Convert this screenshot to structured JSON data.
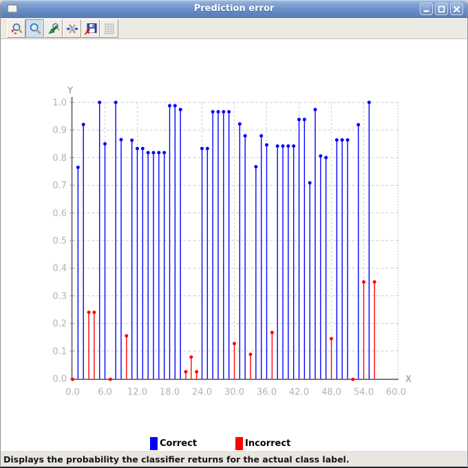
{
  "window": {
    "title": "Prediction error"
  },
  "toolbar": {
    "buttons": [
      {
        "name": "resize-plot",
        "icon": "zoom-resize-icon",
        "selected": false,
        "disabled": false
      },
      {
        "name": "zoom",
        "icon": "zoom-icon",
        "selected": true,
        "disabled": false
      },
      {
        "name": "undo-zoom",
        "icon": "undo-zoom-icon",
        "selected": false,
        "disabled": false
      },
      {
        "name": "fit-to-window",
        "icon": "fit-arrows-icon",
        "selected": false,
        "disabled": false
      },
      {
        "name": "save-plot",
        "icon": "save-icon",
        "selected": false,
        "disabled": false
      },
      {
        "name": "show-table",
        "icon": "grid-icon",
        "selected": false,
        "disabled": true
      }
    ]
  },
  "chart_data": {
    "type": "scatter",
    "subtype": "stem",
    "title": "",
    "xlabel": "X",
    "ylabel": "Y",
    "xlim": [
      0,
      60
    ],
    "ylim": [
      0.0,
      1.0
    ],
    "grid": true,
    "legend_position": "bottom",
    "xticks": [
      "0.0",
      "6.0",
      "12.0",
      "18.0",
      "24.0",
      "30.0",
      "36.0",
      "42.0",
      "48.0",
      "54.0",
      "60.0"
    ],
    "yticks": [
      "0.0",
      "0.1",
      "0.2",
      "0.3",
      "0.4",
      "0.5",
      "0.6",
      "0.7",
      "0.8",
      "0.9",
      "1.0"
    ],
    "series": [
      {
        "name": "Correct",
        "color": "#0000ff",
        "points": [
          [
            1,
            0.765
          ],
          [
            2,
            0.92
          ],
          [
            5,
            1.0
          ],
          [
            6,
            0.85
          ],
          [
            8,
            1.0
          ],
          [
            9,
            0.865
          ],
          [
            11,
            0.863
          ],
          [
            12,
            0.833
          ],
          [
            13,
            0.833
          ],
          [
            14,
            0.818
          ],
          [
            15,
            0.818
          ],
          [
            16,
            0.818
          ],
          [
            17,
            0.818
          ],
          [
            18,
            0.988
          ],
          [
            19,
            0.988
          ],
          [
            20,
            0.974
          ],
          [
            24,
            0.833
          ],
          [
            25,
            0.833
          ],
          [
            26,
            0.966
          ],
          [
            27,
            0.966
          ],
          [
            28,
            0.966
          ],
          [
            29,
            0.966
          ],
          [
            31,
            0.922
          ],
          [
            32,
            0.879
          ],
          [
            34,
            0.767
          ],
          [
            35,
            0.879
          ],
          [
            36,
            0.846
          ],
          [
            38,
            0.842
          ],
          [
            39,
            0.842
          ],
          [
            40,
            0.842
          ],
          [
            41,
            0.842
          ],
          [
            42,
            0.938
          ],
          [
            43,
            0.938
          ],
          [
            44,
            0.709
          ],
          [
            45,
            0.974
          ],
          [
            46,
            0.806
          ],
          [
            47,
            0.8
          ],
          [
            49,
            0.864
          ],
          [
            50,
            0.864
          ],
          [
            51,
            0.864
          ],
          [
            53,
            0.919
          ],
          [
            55,
            1.0
          ]
        ]
      },
      {
        "name": "Incorrect",
        "color": "#ff0000",
        "points": [
          [
            0,
            0.0
          ],
          [
            3,
            0.24
          ],
          [
            4,
            0.24
          ],
          [
            7,
            0.0
          ],
          [
            10,
            0.155
          ],
          [
            21,
            0.025
          ],
          [
            22,
            0.078
          ],
          [
            23,
            0.025
          ],
          [
            30,
            0.127
          ],
          [
            33,
            0.088
          ],
          [
            37,
            0.167
          ],
          [
            48,
            0.145
          ],
          [
            52,
            0.0
          ],
          [
            54,
            0.35
          ],
          [
            56,
            0.35
          ]
        ]
      }
    ]
  },
  "statusbar": {
    "text": "Displays the probability the classifier returns for the actual class label."
  }
}
